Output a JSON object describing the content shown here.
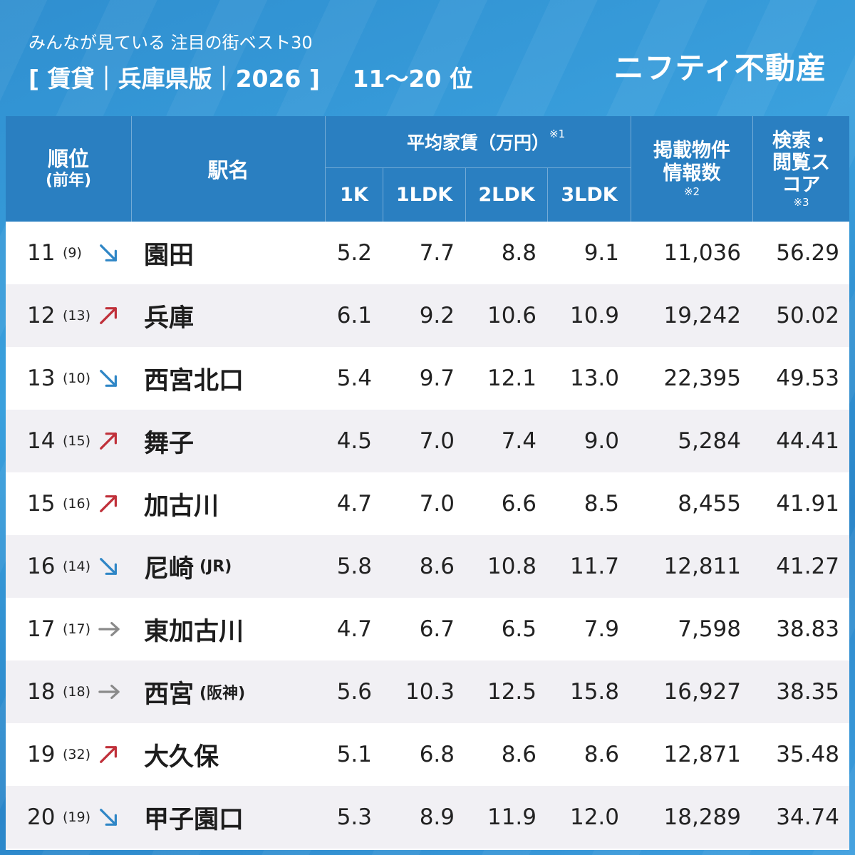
{
  "header": {
    "subtitle": "みんなが見ている 注目の街ベスト30",
    "title": "[ 賃貸｜兵庫県版｜2026 ]",
    "rank_range": "11〜20 位",
    "brand": "ニフティ不動産"
  },
  "table": {
    "columns": {
      "rank": "順位",
      "rank_sub": "(前年)",
      "station": "駅名",
      "rent_group": "平均家賃（万円）",
      "rent_note": "※1",
      "rent_1k": "1K",
      "rent_1ldk": "1LDK",
      "rent_2ldk": "2LDK",
      "rent_3ldk": "3LDK",
      "listings": "掲載物件情報数",
      "listings_note": "※2",
      "score": "検索・閲覧スコア",
      "score_note": "※3"
    },
    "rows": [
      {
        "rank": "11",
        "prev": "(9)",
        "trend": "down",
        "station": "園田",
        "suffix": "",
        "k1": "5.2",
        "ldk1": "7.7",
        "ldk2": "8.8",
        "ldk3": "9.1",
        "listings": "11,036",
        "score": "56.29"
      },
      {
        "rank": "12",
        "prev": "(13)",
        "trend": "up",
        "station": "兵庫",
        "suffix": "",
        "k1": "6.1",
        "ldk1": "9.2",
        "ldk2": "10.6",
        "ldk3": "10.9",
        "listings": "19,242",
        "score": "50.02"
      },
      {
        "rank": "13",
        "prev": "(10)",
        "trend": "down",
        "station": "西宮北口",
        "suffix": "",
        "k1": "5.4",
        "ldk1": "9.7",
        "ldk2": "12.1",
        "ldk3": "13.0",
        "listings": "22,395",
        "score": "49.53"
      },
      {
        "rank": "14",
        "prev": "(15)",
        "trend": "up",
        "station": "舞子",
        "suffix": "",
        "k1": "4.5",
        "ldk1": "7.0",
        "ldk2": "7.4",
        "ldk3": "9.0",
        "listings": "5,284",
        "score": "44.41"
      },
      {
        "rank": "15",
        "prev": "(16)",
        "trend": "up",
        "station": "加古川",
        "suffix": "",
        "k1": "4.7",
        "ldk1": "7.0",
        "ldk2": "6.6",
        "ldk3": "8.5",
        "listings": "8,455",
        "score": "41.91"
      },
      {
        "rank": "16",
        "prev": "(14)",
        "trend": "down",
        "station": "尼崎",
        "suffix": "(JR)",
        "k1": "5.8",
        "ldk1": "8.6",
        "ldk2": "10.8",
        "ldk3": "11.7",
        "listings": "12,811",
        "score": "41.27"
      },
      {
        "rank": "17",
        "prev": "(17)",
        "trend": "same",
        "station": "東加古川",
        "suffix": "",
        "k1": "4.7",
        "ldk1": "6.7",
        "ldk2": "6.5",
        "ldk3": "7.9",
        "listings": "7,598",
        "score": "38.83"
      },
      {
        "rank": "18",
        "prev": "(18)",
        "trend": "same",
        "station": "西宮",
        "suffix": "(阪神)",
        "k1": "5.6",
        "ldk1": "10.3",
        "ldk2": "12.5",
        "ldk3": "15.8",
        "listings": "16,927",
        "score": "38.35"
      },
      {
        "rank": "19",
        "prev": "(32)",
        "trend": "up",
        "station": "大久保",
        "suffix": "",
        "k1": "5.1",
        "ldk1": "6.8",
        "ldk2": "8.6",
        "ldk3": "8.6",
        "listings": "12,871",
        "score": "35.48"
      },
      {
        "rank": "20",
        "prev": "(19)",
        "trend": "down",
        "station": "甲子園口",
        "suffix": "",
        "k1": "5.3",
        "ldk1": "8.9",
        "ldk2": "11.9",
        "ldk3": "12.0",
        "listings": "18,289",
        "score": "34.74"
      }
    ]
  },
  "colors": {
    "up": "#c0303a",
    "down": "#2f86c6",
    "same": "#8a8a8a",
    "header_bg": "#2a7fc1"
  },
  "icons": {
    "up": "arrow-up-right-icon",
    "down": "arrow-down-right-icon",
    "same": "arrow-right-icon"
  }
}
